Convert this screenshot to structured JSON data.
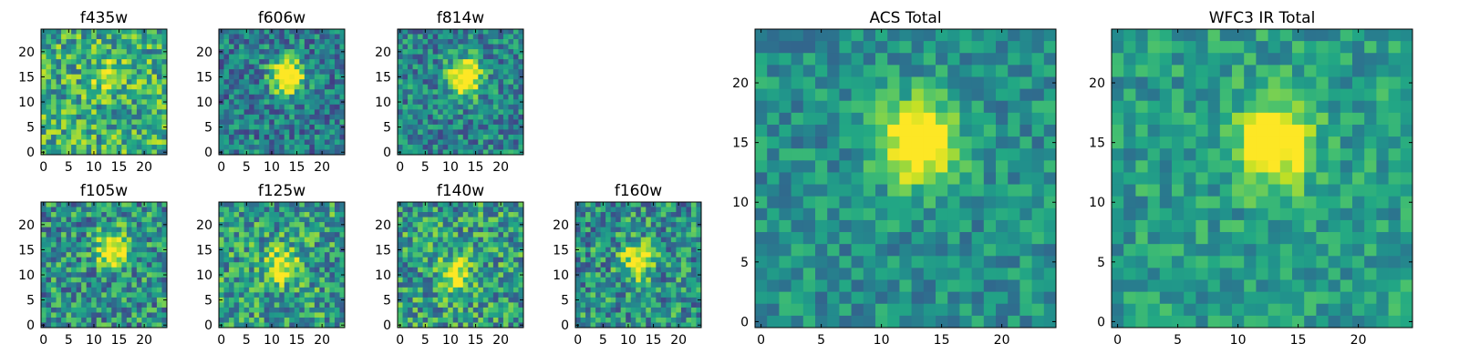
{
  "figure": {
    "colormap": "viridis",
    "grid": false
  },
  "chart_data": [
    {
      "id": "f435w",
      "type": "heatmap",
      "title": "f435w",
      "xlim": [
        0,
        24
      ],
      "ylim": [
        0,
        24
      ],
      "xticks": [
        0,
        5,
        10,
        15,
        20
      ],
      "yticks": [
        0,
        5,
        10,
        15,
        20
      ],
      "grid_size": 25,
      "peak": {
        "x": 13,
        "y": 15,
        "strength": 0.25
      },
      "noise": 0.6,
      "base": 0.62,
      "seed": 11
    },
    {
      "id": "f606w",
      "type": "heatmap",
      "title": "f606w",
      "xlim": [
        0,
        24
      ],
      "ylim": [
        0,
        24
      ],
      "xticks": [
        0,
        5,
        10,
        15,
        20
      ],
      "yticks": [
        0,
        5,
        10,
        15,
        20
      ],
      "grid_size": 25,
      "peak": {
        "x": 13,
        "y": 15,
        "strength": 0.9
      },
      "noise": 0.5,
      "base": 0.42,
      "seed": 23
    },
    {
      "id": "f814w",
      "type": "heatmap",
      "title": "f814w",
      "xlim": [
        0,
        24
      ],
      "ylim": [
        0,
        24
      ],
      "xticks": [
        0,
        5,
        10,
        15,
        20
      ],
      "yticks": [
        0,
        5,
        10,
        15,
        20
      ],
      "grid_size": 25,
      "peak": {
        "x": 13,
        "y": 15,
        "strength": 0.85
      },
      "noise": 0.5,
      "base": 0.45,
      "seed": 37
    },
    {
      "id": "f105w",
      "type": "heatmap",
      "title": "f105w",
      "xlim": [
        0,
        24
      ],
      "ylim": [
        0,
        24
      ],
      "xticks": [
        0,
        5,
        10,
        15,
        20
      ],
      "yticks": [
        0,
        5,
        10,
        15,
        20
      ],
      "grid_size": 25,
      "peak": {
        "x": 14,
        "y": 15,
        "strength": 0.7
      },
      "noise": 0.6,
      "base": 0.5,
      "seed": 41
    },
    {
      "id": "f125w",
      "type": "heatmap",
      "title": "f125w",
      "xlim": [
        0,
        24
      ],
      "ylim": [
        0,
        24
      ],
      "xticks": [
        0,
        5,
        10,
        15,
        20
      ],
      "yticks": [
        0,
        5,
        10,
        15,
        20
      ],
      "grid_size": 25,
      "peak": {
        "x": 12,
        "y": 12,
        "strength": 0.5
      },
      "noise": 0.6,
      "base": 0.55,
      "seed": 53
    },
    {
      "id": "f140w",
      "type": "heatmap",
      "title": "f140w",
      "xlim": [
        0,
        24
      ],
      "ylim": [
        0,
        24
      ],
      "xticks": [
        0,
        5,
        10,
        15,
        20
      ],
      "yticks": [
        0,
        5,
        10,
        15,
        20
      ],
      "grid_size": 25,
      "peak": {
        "x": 11,
        "y": 10,
        "strength": 0.5
      },
      "noise": 0.6,
      "base": 0.55,
      "seed": 67
    },
    {
      "id": "f160w",
      "type": "heatmap",
      "title": "f160w",
      "xlim": [
        0,
        24
      ],
      "ylim": [
        0,
        24
      ],
      "xticks": [
        0,
        5,
        10,
        15,
        20
      ],
      "yticks": [
        0,
        5,
        10,
        15,
        20
      ],
      "grid_size": 25,
      "peak": {
        "x": 12,
        "y": 13,
        "strength": 0.6
      },
      "noise": 0.6,
      "base": 0.5,
      "seed": 79
    },
    {
      "id": "acs-total",
      "type": "heatmap",
      "title": "ACS Total",
      "xlim": [
        0,
        24
      ],
      "ylim": [
        0,
        24
      ],
      "xticks": [
        0,
        5,
        10,
        15,
        20
      ],
      "yticks": [
        0,
        5,
        10,
        15,
        20
      ],
      "grid_size": 25,
      "peak": {
        "x": 13,
        "y": 15,
        "strength": 0.75
      },
      "noise": 0.35,
      "base": 0.5,
      "seed": 97
    },
    {
      "id": "wfc3-ir-total",
      "type": "heatmap",
      "title": "WFC3 IR Total",
      "xlim": [
        0,
        24
      ],
      "ylim": [
        0,
        24
      ],
      "xticks": [
        0,
        5,
        10,
        15,
        20
      ],
      "yticks": [
        0,
        5,
        10,
        15,
        20
      ],
      "grid_size": 25,
      "peak": {
        "x": 13,
        "y": 15,
        "strength": 0.7
      },
      "noise": 0.35,
      "base": 0.55,
      "seed": 113
    }
  ]
}
